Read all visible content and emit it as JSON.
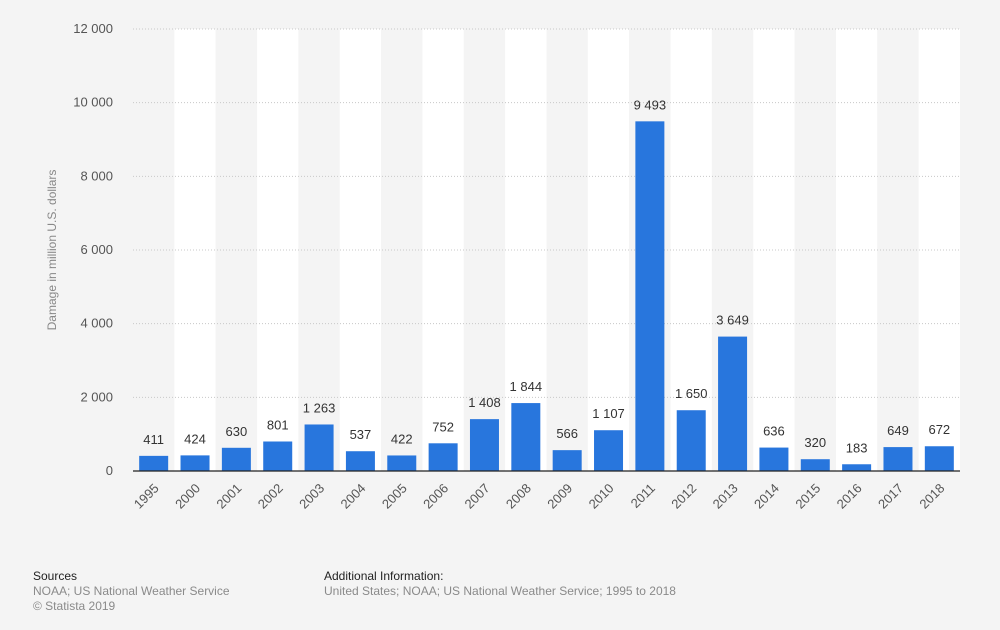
{
  "chart_data": {
    "type": "bar",
    "title": "",
    "xlabel": "",
    "ylabel": "Damage in million U.S. dollars",
    "ylim": [
      0,
      12000
    ],
    "yticks": [
      0,
      2000,
      4000,
      6000,
      8000,
      10000,
      12000
    ],
    "ytick_labels": [
      "0",
      "2 000",
      "4 000",
      "6 000",
      "8 000",
      "10 000",
      "12 000"
    ],
    "grid": true,
    "categories": [
      "1995",
      "2000",
      "2001",
      "2002",
      "2003",
      "2004",
      "2005",
      "2006",
      "2007",
      "2008",
      "2009",
      "2010",
      "2011",
      "2012",
      "2013",
      "2014",
      "2015",
      "2016",
      "2017",
      "2018"
    ],
    "values": [
      411,
      424,
      630,
      801,
      1263,
      537,
      422,
      752,
      1408,
      1844,
      566,
      1107,
      9493,
      1650,
      3649,
      636,
      320,
      183,
      649,
      672
    ],
    "data_labels": [
      "411",
      "424",
      "630",
      "801",
      "1 263",
      "537",
      "422",
      "752",
      "1 408",
      "1 844",
      "566",
      "1 107",
      "9 493",
      "1 650",
      "3 649",
      "636",
      "320",
      "183",
      "649",
      "672"
    ],
    "bar_color": "#2876dd"
  },
  "footer": {
    "sources_heading": "Sources",
    "sources_text": "NOAA; US National Weather Service",
    "copyright": "© Statista 2019",
    "additional_heading": "Additional Information:",
    "additional_text": "United States; NOAA; US National Weather Service; 1995 to 2018"
  }
}
